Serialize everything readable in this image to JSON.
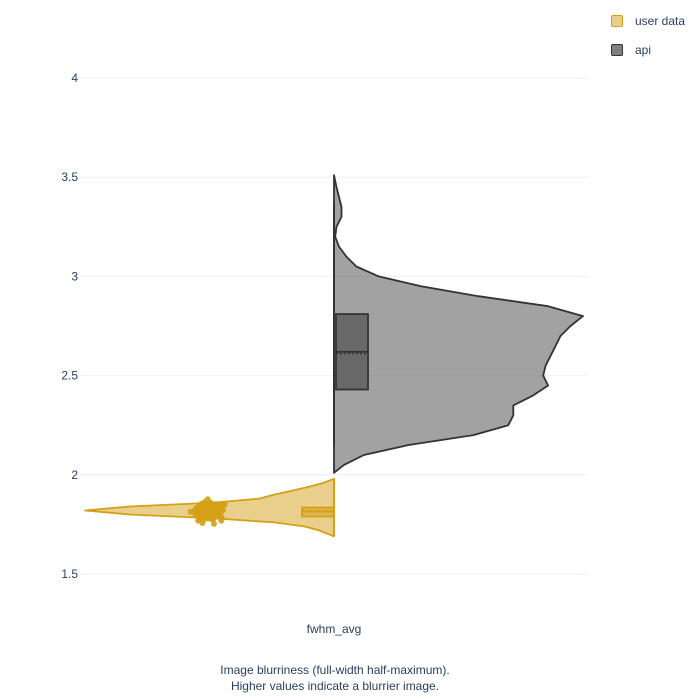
{
  "chart_data": {
    "type": "violin",
    "title": "",
    "xlabel": "",
    "ylabel": "",
    "ylim": [
      1.4,
      4.2
    ],
    "yticks": [
      "1.5",
      "2",
      "2.5",
      "3",
      "3.5",
      "4"
    ],
    "ytick_values": [
      1.5,
      2,
      2.5,
      3,
      3.5,
      4
    ],
    "category": "fwhm_avg",
    "grid": true,
    "legend_position": "top-right",
    "caption_lines": [
      "Image blurriness (full-width half-maximum).",
      "Higher values indicate a blurrier image."
    ],
    "series": [
      {
        "name": "user data",
        "side": "negative",
        "color": "#d4a017",
        "box": {
          "q1": 1.79,
          "median": 1.815,
          "mean": 1.82,
          "q3": 1.835,
          "lower_fence": 1.69,
          "upper_fence": 1.98
        },
        "points_range": [
          1.72,
          1.95
        ],
        "density": [
          [
            1.69,
            0.0
          ],
          [
            1.7,
            0.02
          ],
          [
            1.72,
            0.06
          ],
          [
            1.74,
            0.12
          ],
          [
            1.76,
            0.24
          ],
          [
            1.78,
            0.48
          ],
          [
            1.8,
            0.82
          ],
          [
            1.82,
            1.0
          ],
          [
            1.84,
            0.82
          ],
          [
            1.86,
            0.48
          ],
          [
            1.88,
            0.3
          ],
          [
            1.9,
            0.24
          ],
          [
            1.92,
            0.17
          ],
          [
            1.94,
            0.1
          ],
          [
            1.96,
            0.04
          ],
          [
            1.98,
            0.0
          ]
        ]
      },
      {
        "name": "api",
        "side": "positive",
        "color": "#555555",
        "box": {
          "q1": 2.43,
          "median": 2.62,
          "mean": 2.61,
          "q3": 2.81,
          "lower_fence": 2.15,
          "upper_fence": 3.37
        },
        "density": [
          [
            2.01,
            0.0
          ],
          [
            2.05,
            0.04
          ],
          [
            2.1,
            0.12
          ],
          [
            2.15,
            0.3
          ],
          [
            2.2,
            0.56
          ],
          [
            2.25,
            0.7
          ],
          [
            2.3,
            0.72
          ],
          [
            2.35,
            0.72
          ],
          [
            2.4,
            0.8
          ],
          [
            2.45,
            0.86
          ],
          [
            2.5,
            0.84
          ],
          [
            2.55,
            0.85
          ],
          [
            2.6,
            0.87
          ],
          [
            2.65,
            0.89
          ],
          [
            2.7,
            0.91
          ],
          [
            2.75,
            0.95
          ],
          [
            2.8,
            1.0
          ],
          [
            2.85,
            0.86
          ],
          [
            2.9,
            0.58
          ],
          [
            2.95,
            0.35
          ],
          [
            3.0,
            0.18
          ],
          [
            3.05,
            0.09
          ],
          [
            3.1,
            0.05
          ],
          [
            3.15,
            0.02
          ],
          [
            3.2,
            0.005
          ],
          [
            3.25,
            0.01
          ],
          [
            3.3,
            0.03
          ],
          [
            3.35,
            0.03
          ],
          [
            3.4,
            0.02
          ],
          [
            3.45,
            0.01
          ],
          [
            3.51,
            0.0
          ]
        ]
      }
    ]
  },
  "icons": {
    "legend_swatch": "square-swatch"
  }
}
